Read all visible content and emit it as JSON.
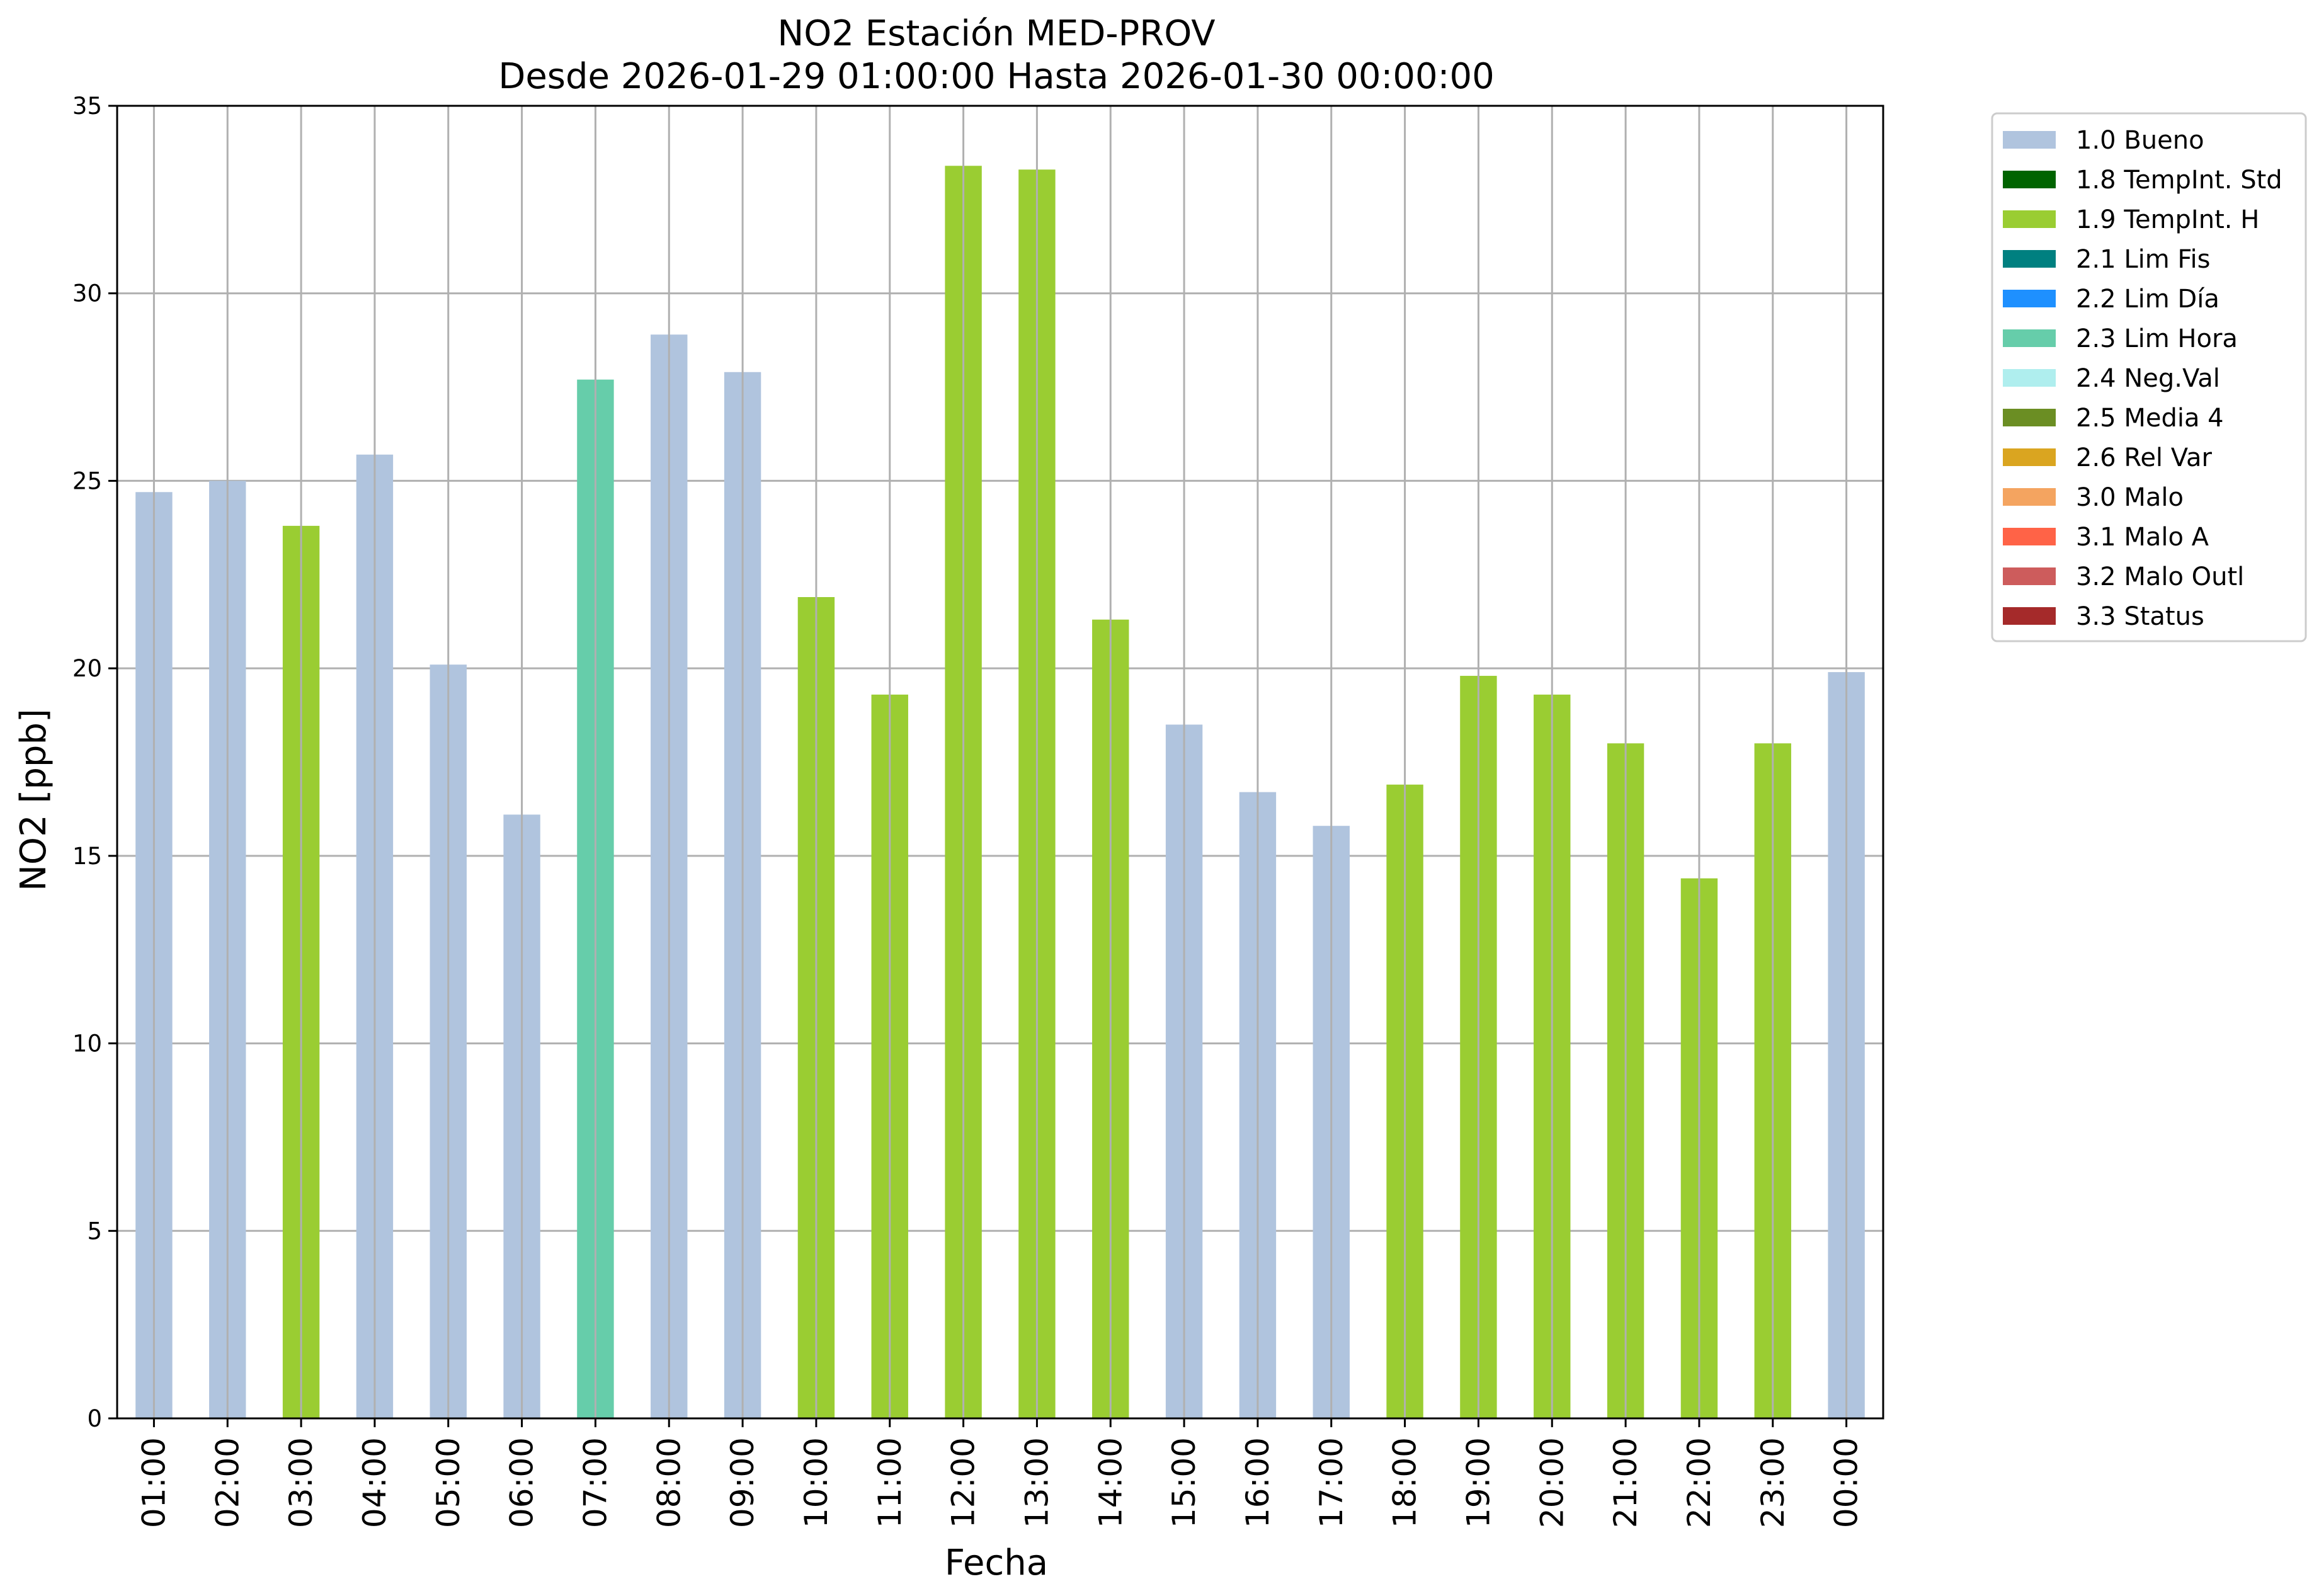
{
  "chart_data": {
    "type": "bar",
    "title": "NO2 Estación MED-PROV",
    "subtitle": "Desde 2026-01-29 01:00:00 Hasta 2026-01-30 00:00:00",
    "xlabel": "Fecha",
    "ylabel": "NO2 [ppb]",
    "ylim": [
      0,
      35
    ],
    "yticks": [
      "0",
      "5",
      "10",
      "15",
      "20",
      "25",
      "30",
      "35"
    ],
    "grid": true,
    "legend_position": "outside-right",
    "categories": [
      "01:00",
      "02:00",
      "03:00",
      "04:00",
      "05:00",
      "06:00",
      "07:00",
      "08:00",
      "09:00",
      "10:00",
      "11:00",
      "12:00",
      "13:00",
      "14:00",
      "15:00",
      "16:00",
      "17:00",
      "18:00",
      "19:00",
      "20:00",
      "21:00",
      "22:00",
      "23:00",
      "00:00"
    ],
    "values": [
      24.7,
      25.0,
      23.8,
      25.7,
      20.1,
      16.1,
      27.7,
      28.9,
      27.9,
      21.9,
      19.3,
      33.4,
      33.3,
      21.3,
      18.5,
      16.7,
      15.8,
      16.9,
      19.8,
      19.3,
      18.0,
      14.4,
      18.0,
      19.9
    ],
    "flags": [
      "1.0 Bueno",
      "1.0 Bueno",
      "1.9 TempInt. H",
      "1.0 Bueno",
      "1.0 Bueno",
      "1.0 Bueno",
      "2.3 Lim Hora",
      "1.0 Bueno",
      "1.0 Bueno",
      "1.9 TempInt. H",
      "1.9 TempInt. H",
      "1.9 TempInt. H",
      "1.9 TempInt. H",
      "1.9 TempInt. H",
      "1.0 Bueno",
      "1.0 Bueno",
      "1.0 Bueno",
      "1.9 TempInt. H",
      "1.9 TempInt. H",
      "1.9 TempInt. H",
      "1.9 TempInt. H",
      "1.9 TempInt. H",
      "1.9 TempInt. H",
      "1.0 Bueno"
    ],
    "legend": [
      {
        "label": "1.0 Bueno",
        "color": "#b0c4de"
      },
      {
        "label": "1.8 TempInt. Std",
        "color": "#006400"
      },
      {
        "label": "1.9 TempInt. H",
        "color": "#9acd32"
      },
      {
        "label": "2.1 Lim Fis",
        "color": "#008080"
      },
      {
        "label": "2.2 Lim Día",
        "color": "#1e90ff"
      },
      {
        "label": "2.3 Lim Hora",
        "color": "#66cdaa"
      },
      {
        "label": "2.4 Neg.Val",
        "color": "#afeeee"
      },
      {
        "label": "2.5 Media 4",
        "color": "#6b8e23"
      },
      {
        "label": "2.6 Rel Var",
        "color": "#daa520"
      },
      {
        "label": "3.0 Malo",
        "color": "#f4a460"
      },
      {
        "label": "3.1 Malo A",
        "color": "#ff6347"
      },
      {
        "label": "3.2 Malo Outl",
        "color": "#cd5c5c"
      },
      {
        "label": "3.3 Status",
        "color": "#a52a2a"
      }
    ]
  }
}
